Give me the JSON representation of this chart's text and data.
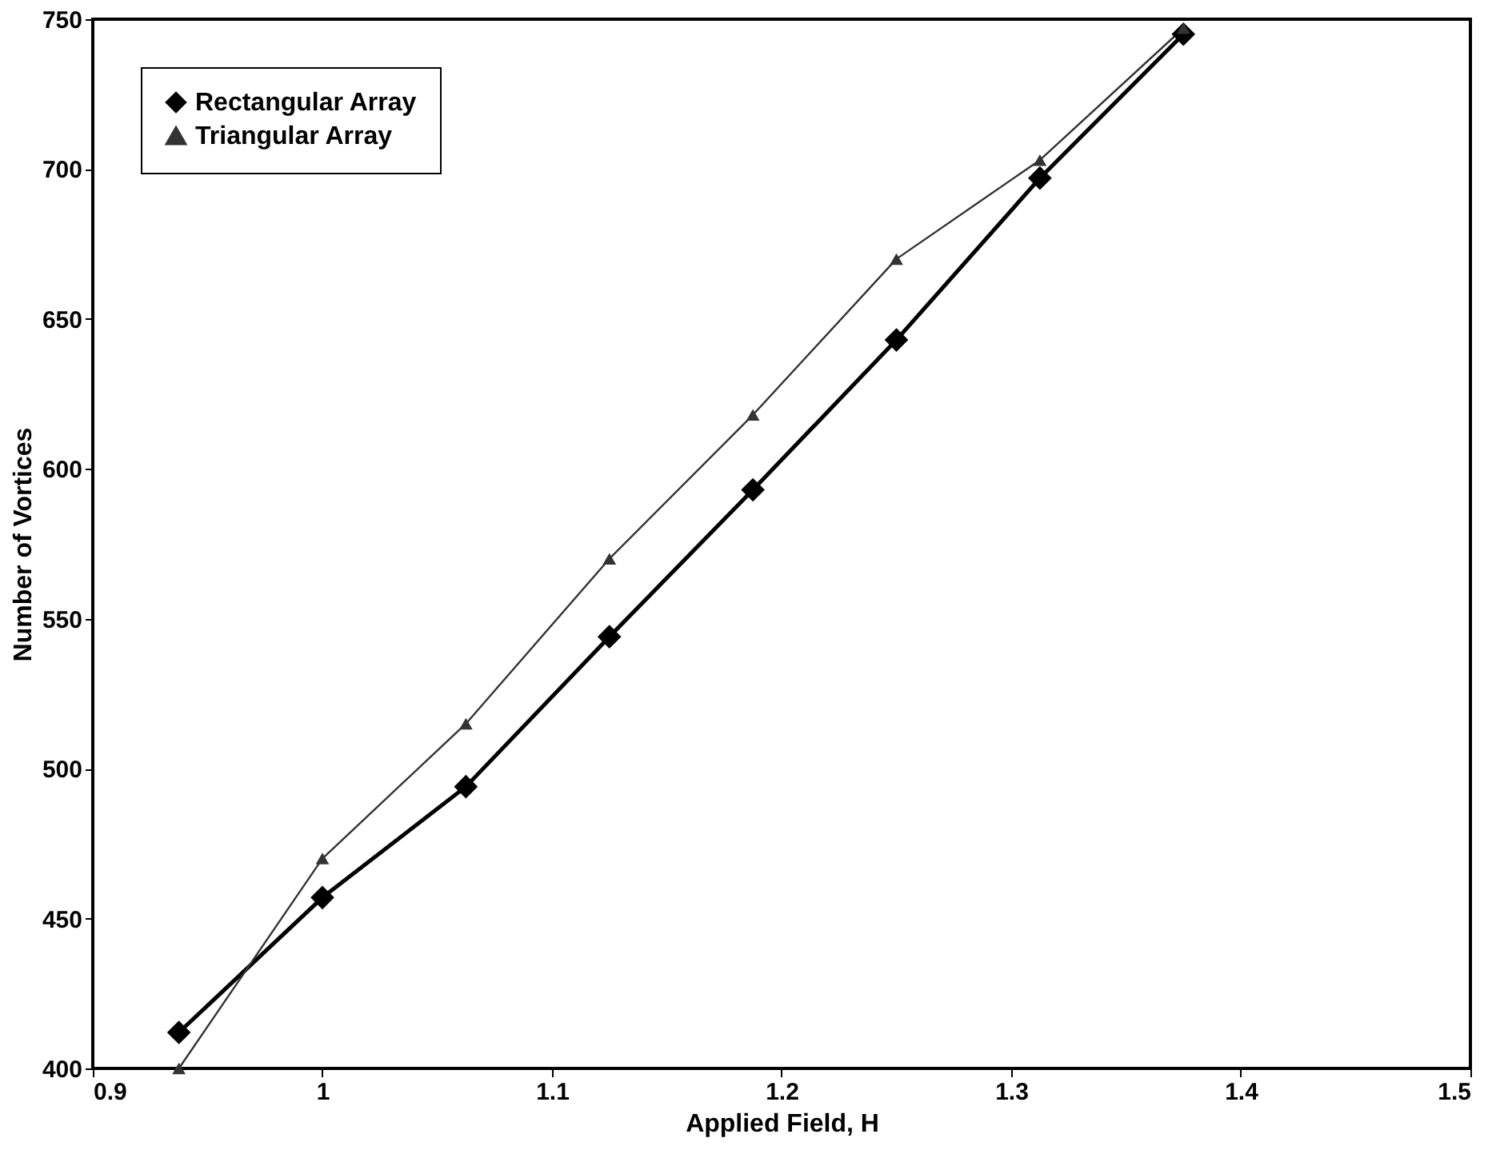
{
  "chart_data": {
    "type": "line",
    "xlabel": "Applied Field, H",
    "ylabel": "Number of Vortices",
    "x": [
      0.9375,
      1.0,
      1.0625,
      1.125,
      1.1875,
      1.25,
      1.3125,
      1.375
    ],
    "series": [
      {
        "name": "Rectangular Array",
        "color": "#000000",
        "marker": "diamond",
        "values": [
          412,
          457,
          494,
          544,
          593,
          643,
          697,
          745
        ]
      },
      {
        "name": "Triangular Array",
        "color": "#333333",
        "marker": "triangle",
        "values": [
          400,
          470,
          515,
          570,
          618,
          670,
          703,
          747
        ]
      }
    ],
    "xlim": [
      0.9,
      1.5
    ],
    "xticks": [
      0.9,
      1,
      1.1,
      1.2,
      1.3,
      1.4,
      1.5
    ],
    "ylim": [
      400,
      750
    ],
    "yticks": [
      400,
      450,
      500,
      550,
      600,
      650,
      700,
      750
    ],
    "grid": false,
    "legend": "top left",
    "line_style": "solid"
  }
}
